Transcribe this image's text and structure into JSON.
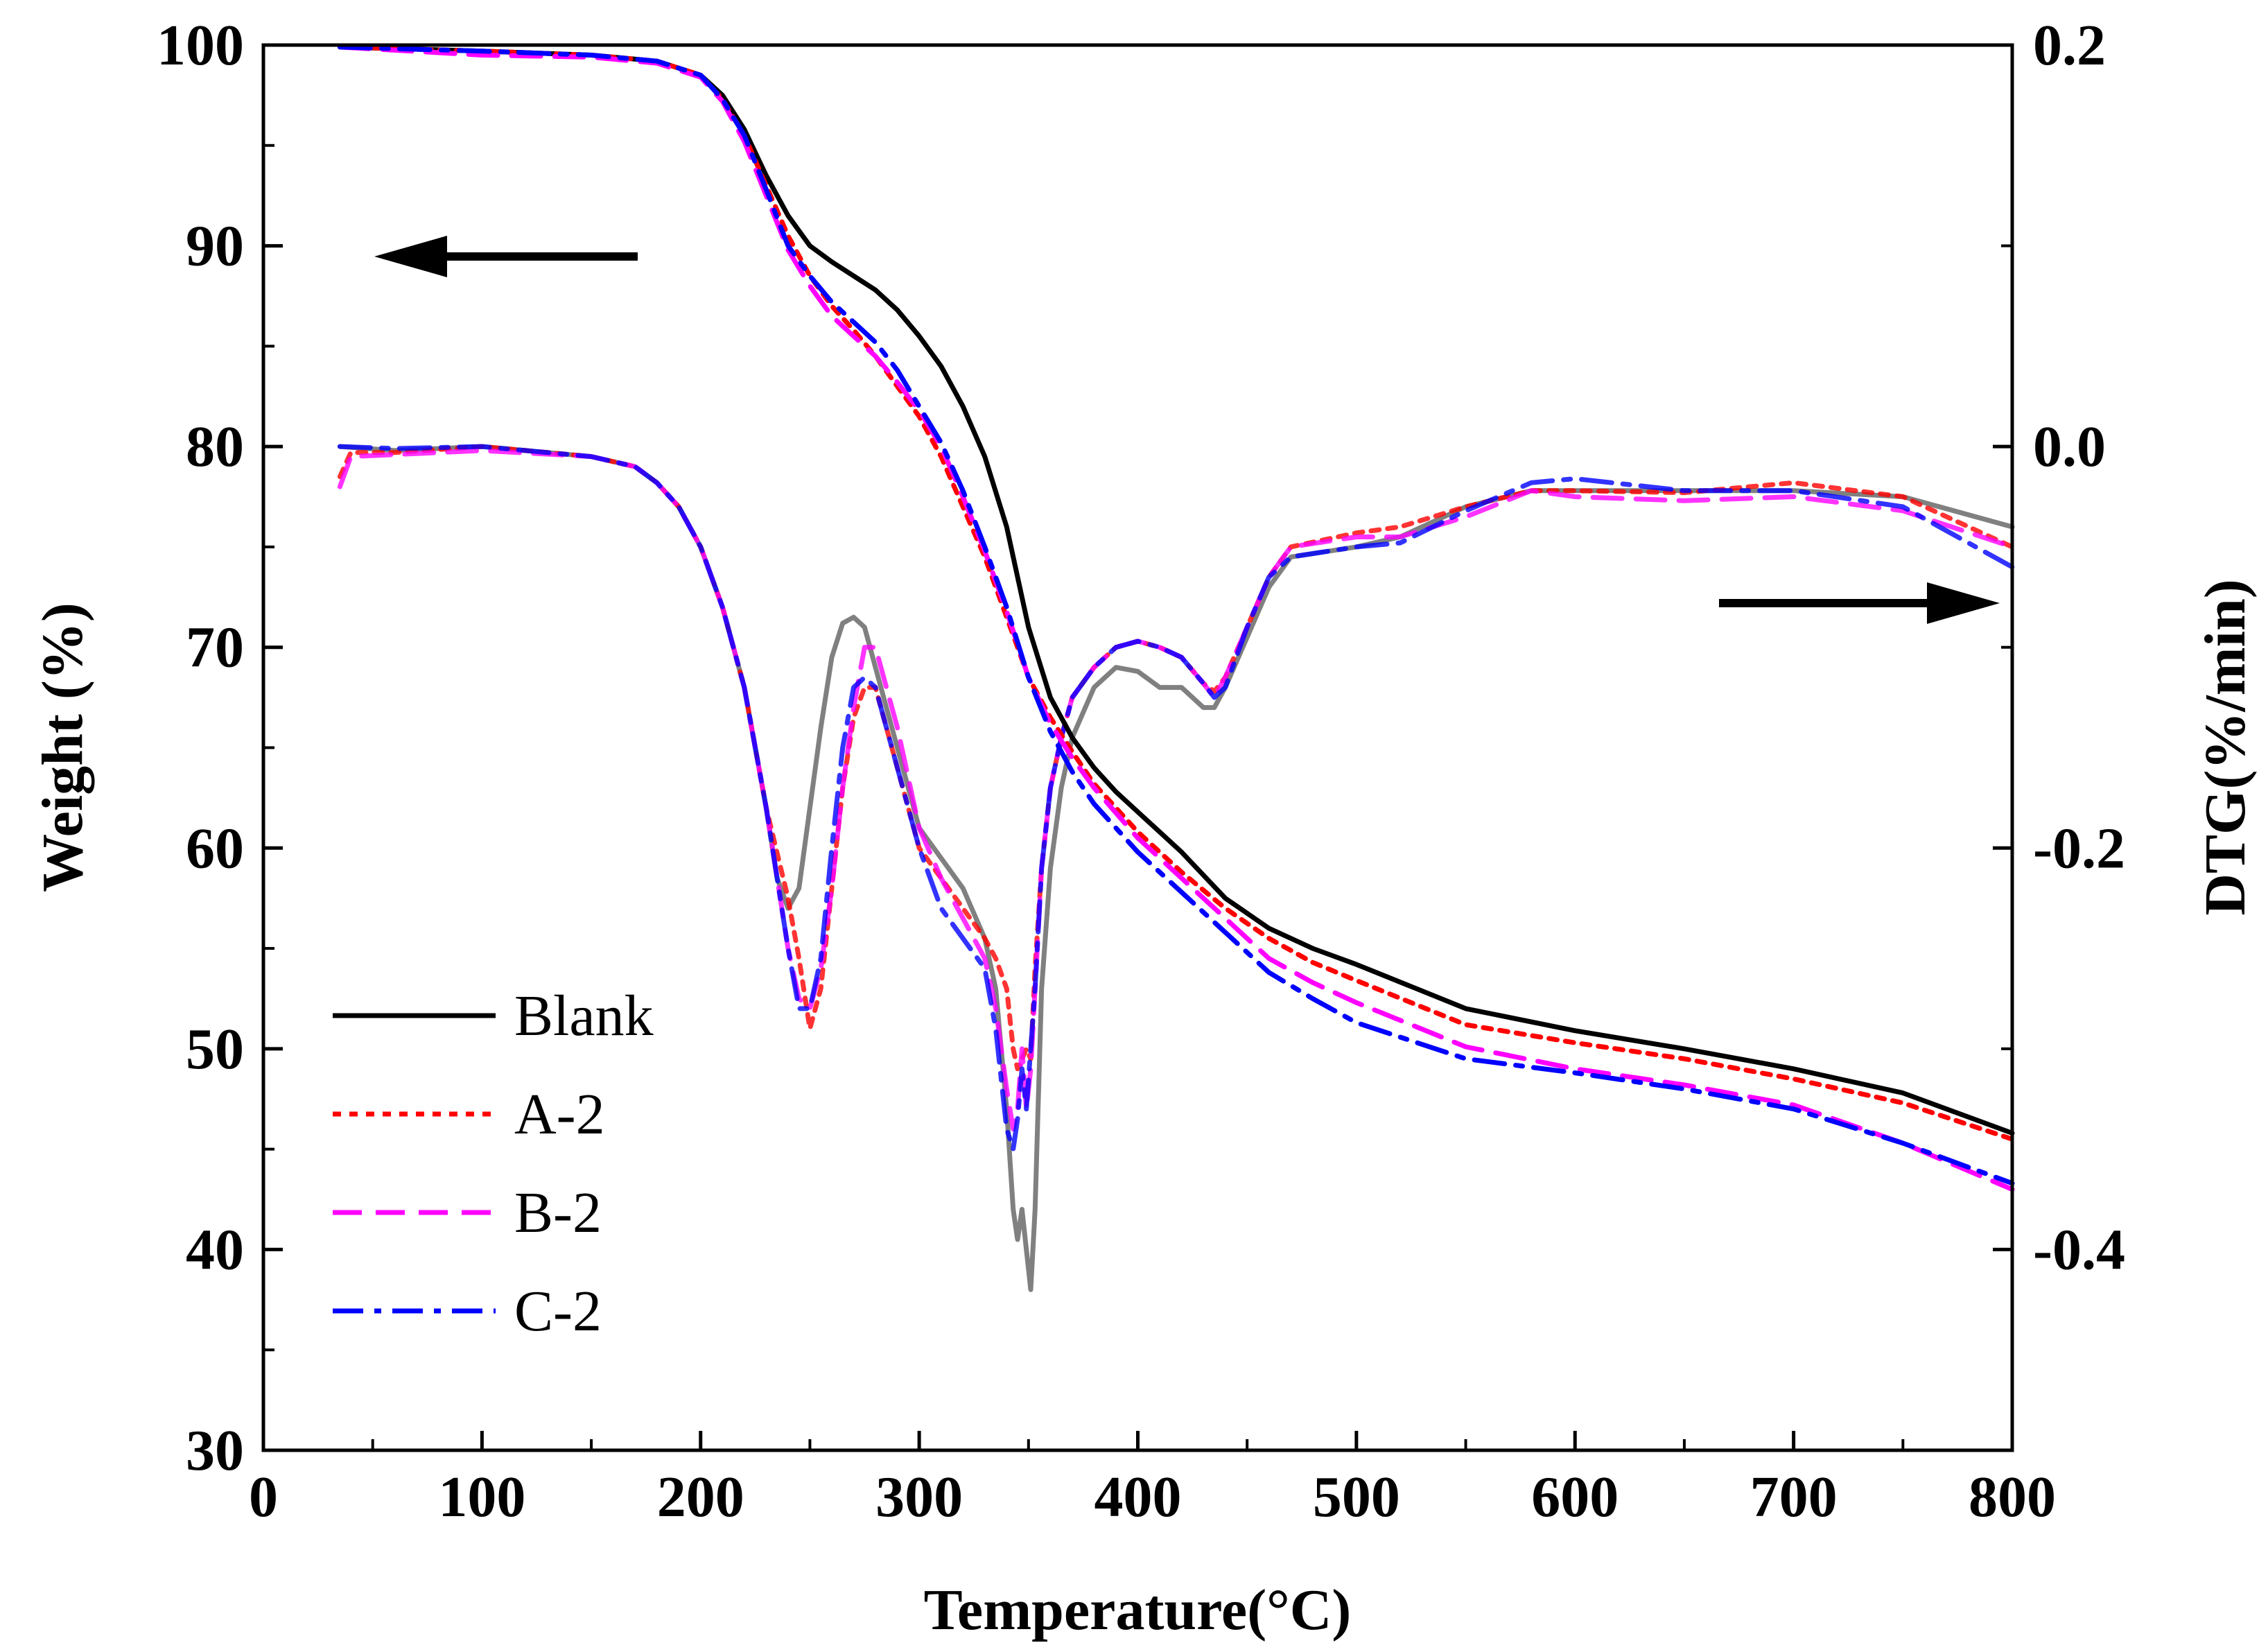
{
  "chart_data": {
    "type": "line",
    "xlabel": "Temperature(°C)",
    "ylabel_left": "Weight (%)",
    "ylabel_right": "DTG(%/min)",
    "xlim": [
      0,
      800
    ],
    "ylim_left": [
      30,
      100
    ],
    "ylim_right": [
      -0.5,
      0.2
    ],
    "x_ticks": [
      "0",
      "100",
      "200",
      "300",
      "400",
      "500",
      "600",
      "700",
      "800"
    ],
    "y_left_ticks": [
      "30",
      "40",
      "50",
      "60",
      "70",
      "80",
      "90",
      "100"
    ],
    "y_right_ticks": [
      "-0.4",
      "-0.2",
      "0.0",
      "0.2"
    ],
    "legend": [
      "Blank",
      "A-2",
      "B-2",
      "C-2"
    ],
    "series": [
      {
        "name": "Blank",
        "kind": "TG",
        "axis": "left",
        "color": "#000000",
        "dash": "solid",
        "x": [
          35,
          100,
          150,
          180,
          200,
          210,
          220,
          230,
          240,
          250,
          260,
          270,
          280,
          290,
          300,
          310,
          320,
          330,
          340,
          350,
          360,
          370,
          380,
          390,
          400,
          420,
          440,
          460,
          480,
          500,
          550,
          600,
          650,
          700,
          750,
          800
        ],
        "y": [
          99.9,
          99.7,
          99.5,
          99.2,
          98.5,
          97.5,
          95.8,
          93.5,
          91.5,
          90.0,
          89.2,
          88.5,
          87.8,
          86.8,
          85.5,
          84.0,
          82.0,
          79.5,
          76.0,
          71.0,
          67.5,
          65.5,
          64.0,
          62.8,
          61.8,
          59.8,
          57.5,
          56.0,
          55.0,
          54.2,
          52.0,
          50.9,
          50.0,
          49.0,
          47.8,
          45.8
        ]
      },
      {
        "name": "A-2",
        "kind": "TG",
        "axis": "left",
        "color": "#ff0000",
        "dash": "dot",
        "x": [
          35,
          100,
          150,
          180,
          200,
          210,
          220,
          230,
          240,
          250,
          260,
          270,
          280,
          290,
          300,
          310,
          320,
          330,
          340,
          350,
          360,
          370,
          380,
          400,
          420,
          440,
          460,
          480,
          500,
          550,
          600,
          650,
          700,
          750,
          800
        ],
        "y": [
          99.9,
          99.7,
          99.5,
          99.2,
          98.5,
          97.3,
          95.5,
          93.0,
          90.5,
          88.5,
          87.0,
          85.8,
          84.5,
          83.0,
          81.5,
          79.5,
          77.0,
          74.5,
          71.5,
          68.5,
          66.5,
          64.8,
          63.2,
          60.8,
          58.8,
          57.0,
          55.5,
          54.3,
          53.4,
          51.2,
          50.3,
          49.5,
          48.5,
          47.3,
          45.5
        ]
      },
      {
        "name": "B-2",
        "kind": "TG",
        "axis": "left",
        "color": "#ff00ff",
        "dash": "dash",
        "x": [
          35,
          100,
          150,
          180,
          200,
          210,
          220,
          230,
          240,
          250,
          260,
          270,
          280,
          290,
          300,
          310,
          320,
          330,
          340,
          350,
          360,
          370,
          380,
          400,
          420,
          440,
          460,
          480,
          500,
          550,
          600,
          650,
          700,
          750,
          800
        ],
        "y": [
          99.9,
          99.5,
          99.4,
          99.1,
          98.4,
          97.2,
          95.2,
          92.5,
          89.8,
          88.0,
          86.5,
          85.5,
          84.5,
          83.2,
          81.8,
          80.0,
          77.5,
          74.8,
          71.8,
          68.5,
          66.2,
          64.5,
          63.0,
          60.5,
          58.5,
          56.5,
          54.5,
          53.3,
          52.3,
          50.1,
          49.0,
          48.2,
          47.2,
          45.3,
          43.0
        ]
      },
      {
        "name": "C-2",
        "kind": "TG",
        "axis": "left",
        "color": "#0000ff",
        "dash": "dashdot",
        "x": [
          35,
          100,
          150,
          180,
          200,
          210,
          220,
          230,
          240,
          250,
          260,
          270,
          280,
          290,
          300,
          310,
          320,
          330,
          340,
          350,
          360,
          370,
          380,
          400,
          420,
          440,
          460,
          480,
          500,
          550,
          600,
          650,
          700,
          750,
          800
        ],
        "y": [
          99.9,
          99.7,
          99.5,
          99.2,
          98.5,
          97.3,
          95.5,
          92.8,
          90.0,
          88.5,
          87.2,
          86.2,
          85.2,
          83.8,
          82.0,
          80.2,
          77.8,
          75.0,
          72.0,
          68.5,
          65.8,
          63.8,
          62.2,
          59.8,
          57.8,
          55.8,
          53.8,
          52.5,
          51.3,
          49.5,
          48.8,
          48.0,
          47.0,
          45.3,
          43.3
        ]
      },
      {
        "name": "Blank",
        "kind": "DTG",
        "axis": "right",
        "color": "#808080",
        "dash": "solid",
        "x": [
          35,
          60,
          100,
          150,
          170,
          180,
          190,
          200,
          210,
          220,
          230,
          235,
          240,
          245,
          250,
          255,
          260,
          265,
          270,
          275,
          280,
          290,
          300,
          310,
          320,
          330,
          335,
          340,
          343,
          345,
          347,
          349,
          351,
          353,
          356,
          360,
          365,
          370,
          380,
          390,
          400,
          410,
          420,
          430,
          435,
          440,
          450,
          460,
          470,
          500,
          520,
          550,
          580,
          600,
          650,
          700,
          750,
          800
        ],
        "y": [
          0.0,
          -0.002,
          0.0,
          -0.005,
          -0.01,
          -0.018,
          -0.03,
          -0.05,
          -0.08,
          -0.12,
          -0.18,
          -0.215,
          -0.23,
          -0.22,
          -0.18,
          -0.14,
          -0.105,
          -0.088,
          -0.085,
          -0.09,
          -0.11,
          -0.15,
          -0.19,
          -0.205,
          -0.22,
          -0.245,
          -0.27,
          -0.33,
          -0.38,
          -0.395,
          -0.38,
          -0.4,
          -0.42,
          -0.38,
          -0.27,
          -0.21,
          -0.17,
          -0.145,
          -0.12,
          -0.11,
          -0.112,
          -0.12,
          -0.12,
          -0.13,
          -0.13,
          -0.12,
          -0.095,
          -0.07,
          -0.055,
          -0.05,
          -0.045,
          -0.03,
          -0.022,
          -0.022,
          -0.022,
          -0.022,
          -0.025,
          -0.04
        ]
      },
      {
        "name": "A-2",
        "kind": "DTG",
        "axis": "right",
        "color": "#ff0000",
        "dash": "dot",
        "x": [
          35,
          40,
          60,
          100,
          150,
          170,
          180,
          190,
          200,
          210,
          220,
          230,
          240,
          245,
          250,
          255,
          260,
          265,
          270,
          275,
          280,
          290,
          300,
          310,
          320,
          330,
          335,
          340,
          343,
          345,
          347,
          349,
          351,
          353,
          356,
          360,
          365,
          370,
          380,
          390,
          400,
          410,
          420,
          430,
          435,
          440,
          450,
          460,
          470,
          500,
          520,
          550,
          580,
          600,
          650,
          700,
          750,
          800
        ],
        "y": [
          -0.015,
          -0.003,
          -0.003,
          0.0,
          -0.005,
          -0.01,
          -0.018,
          -0.03,
          -0.05,
          -0.08,
          -0.12,
          -0.18,
          -0.225,
          -0.255,
          -0.29,
          -0.27,
          -0.22,
          -0.17,
          -0.135,
          -0.12,
          -0.12,
          -0.16,
          -0.2,
          -0.215,
          -0.23,
          -0.245,
          -0.255,
          -0.27,
          -0.3,
          -0.31,
          -0.305,
          -0.3,
          -0.305,
          -0.26,
          -0.21,
          -0.17,
          -0.145,
          -0.125,
          -0.11,
          -0.1,
          -0.097,
          -0.1,
          -0.105,
          -0.118,
          -0.122,
          -0.115,
          -0.09,
          -0.065,
          -0.05,
          -0.043,
          -0.04,
          -0.03,
          -0.022,
          -0.022,
          -0.023,
          -0.018,
          -0.025,
          -0.05
        ]
      },
      {
        "name": "B-2",
        "kind": "DTG",
        "axis": "right",
        "color": "#ff00ff",
        "dash": "dash",
        "x": [
          35,
          40,
          60,
          100,
          150,
          170,
          180,
          190,
          200,
          210,
          220,
          230,
          240,
          245,
          250,
          255,
          260,
          265,
          270,
          275,
          280,
          290,
          300,
          310,
          320,
          330,
          335,
          340,
          343,
          345,
          347,
          349,
          351,
          353,
          356,
          360,
          365,
          370,
          380,
          390,
          400,
          410,
          420,
          430,
          435,
          440,
          450,
          460,
          470,
          500,
          520,
          550,
          580,
          600,
          650,
          700,
          750,
          800
        ],
        "y": [
          -0.02,
          -0.005,
          -0.004,
          -0.002,
          -0.005,
          -0.01,
          -0.018,
          -0.03,
          -0.05,
          -0.08,
          -0.12,
          -0.18,
          -0.25,
          -0.275,
          -0.28,
          -0.26,
          -0.22,
          -0.17,
          -0.13,
          -0.1,
          -0.1,
          -0.14,
          -0.19,
          -0.215,
          -0.235,
          -0.255,
          -0.28,
          -0.32,
          -0.34,
          -0.33,
          -0.3,
          -0.33,
          -0.31,
          -0.27,
          -0.21,
          -0.17,
          -0.145,
          -0.125,
          -0.11,
          -0.1,
          -0.097,
          -0.1,
          -0.105,
          -0.118,
          -0.125,
          -0.115,
          -0.09,
          -0.065,
          -0.05,
          -0.045,
          -0.045,
          -0.035,
          -0.022,
          -0.025,
          -0.027,
          -0.025,
          -0.032,
          -0.05
        ]
      },
      {
        "name": "C-2",
        "kind": "DTG",
        "axis": "right",
        "color": "#0000ff",
        "dash": "dashdot",
        "x": [
          35,
          60,
          100,
          150,
          170,
          180,
          190,
          200,
          210,
          220,
          230,
          240,
          245,
          250,
          255,
          260,
          265,
          270,
          275,
          280,
          290,
          300,
          310,
          320,
          330,
          335,
          340,
          343,
          345,
          347,
          349,
          351,
          353,
          356,
          360,
          365,
          370,
          380,
          390,
          400,
          410,
          420,
          430,
          435,
          440,
          450,
          460,
          470,
          500,
          520,
          550,
          580,
          600,
          650,
          700,
          750,
          800
        ],
        "y": [
          0.0,
          -0.001,
          0.0,
          -0.005,
          -0.01,
          -0.018,
          -0.03,
          -0.05,
          -0.08,
          -0.12,
          -0.18,
          -0.25,
          -0.28,
          -0.28,
          -0.255,
          -0.2,
          -0.15,
          -0.12,
          -0.115,
          -0.12,
          -0.16,
          -0.2,
          -0.23,
          -0.245,
          -0.26,
          -0.29,
          -0.34,
          -0.35,
          -0.335,
          -0.31,
          -0.33,
          -0.3,
          -0.27,
          -0.21,
          -0.17,
          -0.145,
          -0.125,
          -0.11,
          -0.1,
          -0.097,
          -0.1,
          -0.105,
          -0.118,
          -0.125,
          -0.12,
          -0.09,
          -0.065,
          -0.055,
          -0.05,
          -0.048,
          -0.032,
          -0.018,
          -0.016,
          -0.022,
          -0.022,
          -0.03,
          -0.06
        ]
      }
    ],
    "annotations": [
      {
        "name": "left-arrow",
        "points_to": "left axis (Weight)"
      },
      {
        "name": "right-arrow",
        "points_to": "right axis (DTG)"
      }
    ]
  }
}
